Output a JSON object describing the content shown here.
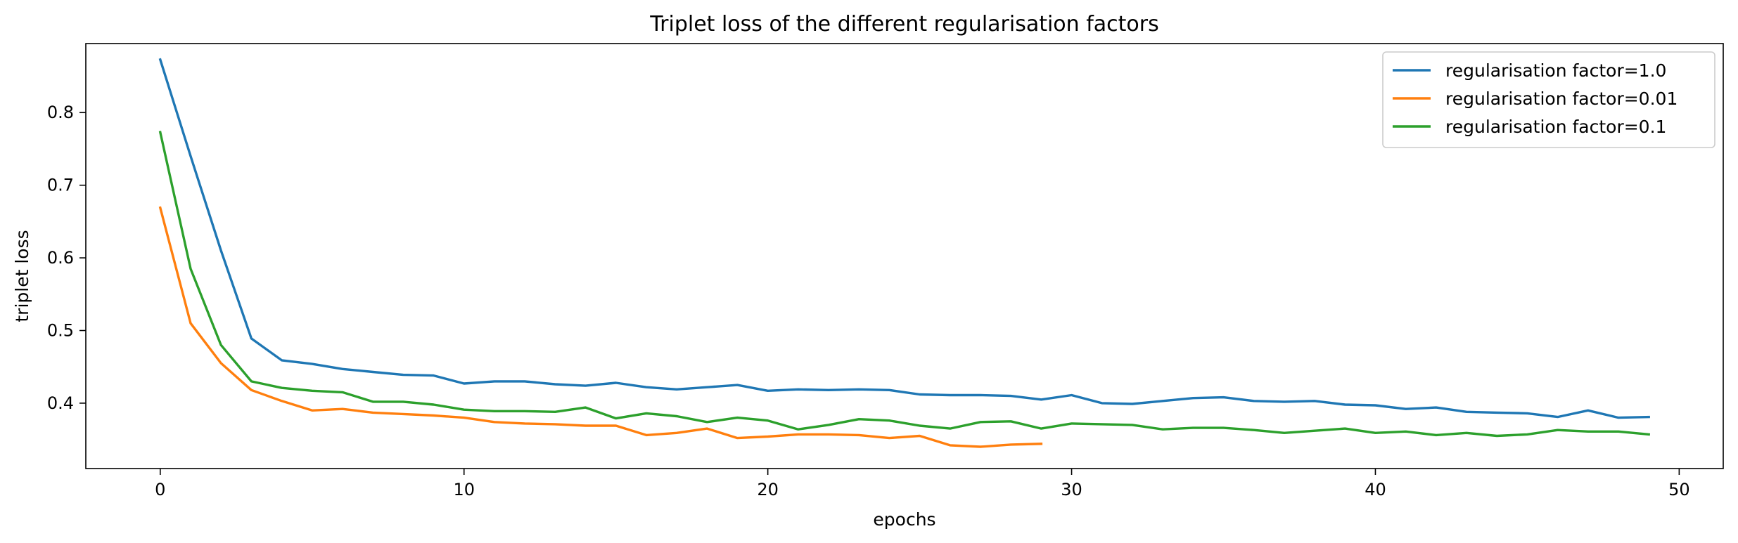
{
  "chart_data": {
    "type": "line",
    "title": "Triplet loss of the different regularisation factors",
    "xlabel": "epochs",
    "ylabel": "triplet loss",
    "xlim": [
      -2.45,
      51.45
    ],
    "ylim": [
      0.31,
      0.895
    ],
    "xticks": [
      0,
      10,
      20,
      30,
      40,
      50
    ],
    "yticks": [
      0.4,
      0.5,
      0.6,
      0.7,
      0.8
    ],
    "grid": false,
    "legend_position": "top-right",
    "series": [
      {
        "name": "regularisation factor=1.0",
        "color": "#1f77b4",
        "x": [
          0,
          1,
          2,
          3,
          4,
          5,
          6,
          7,
          8,
          9,
          10,
          11,
          12,
          13,
          14,
          15,
          16,
          17,
          18,
          19,
          20,
          21,
          22,
          23,
          24,
          25,
          26,
          27,
          28,
          29,
          30,
          31,
          32,
          33,
          34,
          35,
          36,
          37,
          38,
          39,
          40,
          41,
          42,
          43,
          44,
          45,
          46,
          47,
          48,
          49
        ],
        "y": [
          0.873,
          0.74,
          0.61,
          0.489,
          0.459,
          0.454,
          0.447,
          0.443,
          0.439,
          0.438,
          0.427,
          0.43,
          0.43,
          0.426,
          0.424,
          0.428,
          0.422,
          0.419,
          0.422,
          0.425,
          0.417,
          0.419,
          0.418,
          0.419,
          0.418,
          0.412,
          0.411,
          0.411,
          0.41,
          0.405,
          0.411,
          0.4,
          0.399,
          0.403,
          0.407,
          0.408,
          0.403,
          0.402,
          0.403,
          0.398,
          0.397,
          0.392,
          0.394,
          0.388,
          0.387,
          0.386,
          0.381,
          0.39,
          0.38,
          0.381
        ]
      },
      {
        "name": "regularisation factor=0.01",
        "color": "#ff7f0e",
        "x": [
          0,
          1,
          2,
          3,
          4,
          5,
          6,
          7,
          8,
          9,
          10,
          11,
          12,
          13,
          14,
          15,
          16,
          17,
          18,
          19,
          20,
          21,
          22,
          23,
          24,
          25,
          26,
          27,
          28,
          29
        ],
        "y": [
          0.669,
          0.51,
          0.455,
          0.418,
          0.403,
          0.39,
          0.392,
          0.387,
          0.385,
          0.383,
          0.38,
          0.374,
          0.372,
          0.371,
          0.369,
          0.369,
          0.356,
          0.359,
          0.365,
          0.352,
          0.354,
          0.357,
          0.357,
          0.356,
          0.352,
          0.355,
          0.342,
          0.34,
          0.343,
          0.344
        ]
      },
      {
        "name": "regularisation factor=0.1",
        "color": "#2ca02c",
        "x": [
          0,
          1,
          2,
          3,
          4,
          5,
          6,
          7,
          8,
          9,
          10,
          11,
          12,
          13,
          14,
          15,
          16,
          17,
          18,
          19,
          20,
          21,
          22,
          23,
          24,
          25,
          26,
          27,
          28,
          29,
          30,
          31,
          32,
          33,
          34,
          35,
          36,
          37,
          38,
          39,
          40,
          41,
          42,
          43,
          44,
          45,
          46,
          47,
          48,
          49
        ],
        "y": [
          0.773,
          0.585,
          0.48,
          0.43,
          0.421,
          0.417,
          0.415,
          0.402,
          0.402,
          0.398,
          0.391,
          0.389,
          0.389,
          0.388,
          0.394,
          0.379,
          0.386,
          0.382,
          0.374,
          0.38,
          0.376,
          0.364,
          0.37,
          0.378,
          0.376,
          0.369,
          0.365,
          0.374,
          0.375,
          0.365,
          0.372,
          0.371,
          0.37,
          0.364,
          0.366,
          0.366,
          0.363,
          0.359,
          0.362,
          0.365,
          0.359,
          0.361,
          0.356,
          0.359,
          0.355,
          0.357,
          0.363,
          0.361,
          0.361,
          0.357
        ]
      }
    ]
  }
}
